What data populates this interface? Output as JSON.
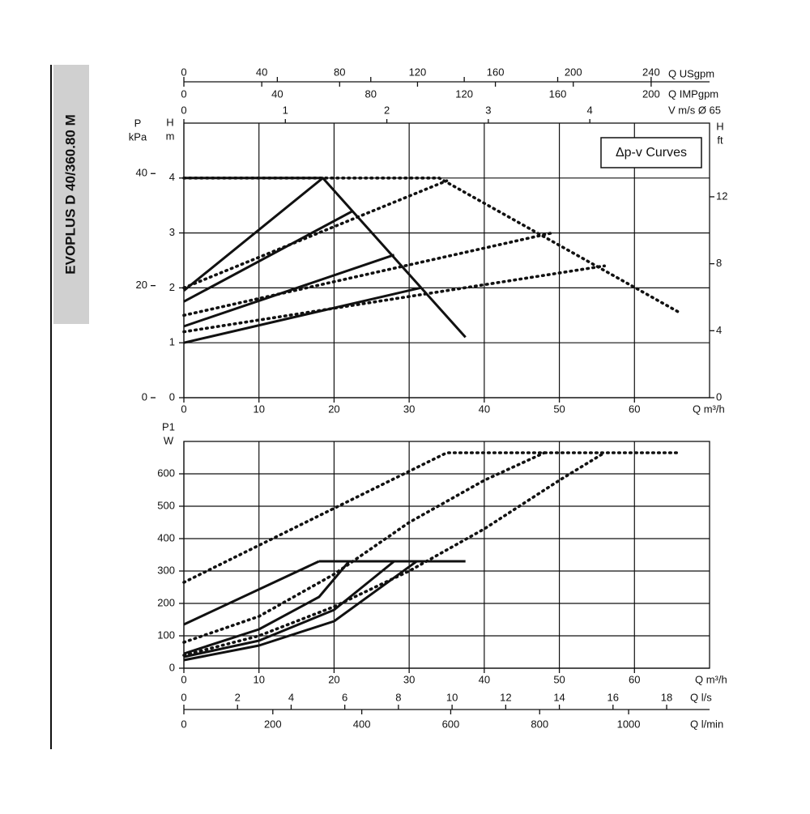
{
  "title": "EVOPLUS D 40/360.80 M",
  "chart_data": [
    {
      "type": "line",
      "annotation": "Δp-v Curves",
      "grid": true,
      "xlabel": "Q m³/h",
      "xlim": [
        0,
        70
      ],
      "xticks": [
        0,
        10,
        20,
        30,
        40,
        50,
        60
      ],
      "x2label": "Q USgpm",
      "x2lim": [
        0,
        270
      ],
      "x2ticks": [
        0,
        40,
        80,
        120,
        160,
        200,
        240
      ],
      "x3label": "Q IMPgpm",
      "x3lim": [
        0,
        225
      ],
      "x3ticks": [
        0,
        40,
        80,
        120,
        160,
        200
      ],
      "x4label": "V m/s Ø 65",
      "x4lim": [
        0,
        5.18
      ],
      "x4ticks": [
        0,
        1,
        2,
        3,
        4
      ],
      "ylabel": [
        "H",
        "m"
      ],
      "ylim": [
        0,
        5
      ],
      "yticks": [
        0,
        1,
        2,
        3,
        4
      ],
      "y2label": [
        "H",
        "ft"
      ],
      "y2lim": [
        0,
        16.4
      ],
      "y2ticks": [
        0,
        4,
        8,
        12
      ],
      "y3label": [
        "P",
        "kPa"
      ],
      "y3lim": [
        0,
        49
      ],
      "y3ticks": [
        0,
        20,
        40
      ],
      "series": [
        {
          "style": "solid",
          "color": "#111111",
          "x": [
            0,
            18.5,
            37.5
          ],
          "values": [
            4,
            4,
            1.1
          ]
        },
        {
          "style": "solid",
          "color": "#111111",
          "x": [
            0,
            18.5
          ],
          "values": [
            1.95,
            4
          ]
        },
        {
          "style": "solid",
          "color": "#111111",
          "x": [
            0,
            22.5
          ],
          "values": [
            1.75,
            3.4
          ]
        },
        {
          "style": "solid",
          "color": "#111111",
          "x": [
            0,
            28
          ],
          "values": [
            1.3,
            2.6
          ]
        },
        {
          "style": "solid",
          "color": "#111111",
          "x": [
            0,
            31.5
          ],
          "values": [
            1.0,
            2.0
          ]
        },
        {
          "style": "dotted",
          "color": "#111111",
          "x": [
            0,
            34,
            66
          ],
          "values": [
            4,
            4,
            1.55
          ]
        },
        {
          "style": "dotted",
          "color": "#111111",
          "x": [
            0,
            35
          ],
          "values": [
            2.0,
            3.95
          ]
        },
        {
          "style": "dotted",
          "color": "#111111",
          "x": [
            0,
            49
          ],
          "values": [
            1.5,
            3.0
          ]
        },
        {
          "style": "dotted",
          "color": "#111111",
          "x": [
            0,
            56
          ],
          "values": [
            1.2,
            2.4
          ]
        }
      ]
    },
    {
      "type": "line",
      "grid": true,
      "xlabel": "Q m³/h",
      "xlim": [
        0,
        70
      ],
      "xticks": [
        0,
        10,
        20,
        30,
        40,
        50,
        60
      ],
      "x2label": "Q l/s",
      "x2lim": [
        0,
        19.6
      ],
      "x2ticks": [
        0,
        2,
        4,
        6,
        8,
        10,
        12,
        14,
        16,
        18
      ],
      "x3label": "Q l/min",
      "x3lim": [
        0,
        1182
      ],
      "x3ticks": [
        0,
        200,
        400,
        600,
        800,
        1000
      ],
      "ylabel": [
        "P1",
        "W"
      ],
      "ylim": [
        0,
        700
      ],
      "yticks": [
        0,
        100,
        200,
        300,
        400,
        500,
        600
      ],
      "series": [
        {
          "style": "solid",
          "color": "#111111",
          "x": [
            18,
            37.5
          ],
          "values": [
            330,
            330
          ]
        },
        {
          "style": "solid",
          "color": "#111111",
          "x": [
            0,
            18
          ],
          "values": [
            135,
            330
          ]
        },
        {
          "style": "solid",
          "color": "#111111",
          "x": [
            0,
            10,
            18,
            22
          ],
          "values": [
            45,
            120,
            220,
            330
          ]
        },
        {
          "style": "solid",
          "color": "#111111",
          "x": [
            0,
            10,
            20,
            28
          ],
          "values": [
            35,
            85,
            180,
            330
          ]
        },
        {
          "style": "solid",
          "color": "#111111",
          "x": [
            0,
            10,
            20,
            31
          ],
          "values": [
            25,
            70,
            145,
            330
          ]
        },
        {
          "style": "dotted",
          "color": "#111111",
          "x": [
            0,
            35,
            66
          ],
          "values": [
            265,
            665,
            665
          ]
        },
        {
          "style": "dotted",
          "color": "#111111",
          "x": [
            0,
            10,
            20,
            30,
            40,
            48
          ],
          "values": [
            80,
            160,
            290,
            450,
            580,
            665
          ]
        },
        {
          "style": "dotted",
          "color": "#111111",
          "x": [
            0,
            10,
            20,
            30,
            40,
            50,
            56
          ],
          "values": [
            40,
            100,
            190,
            300,
            430,
            580,
            665
          ]
        }
      ]
    }
  ]
}
